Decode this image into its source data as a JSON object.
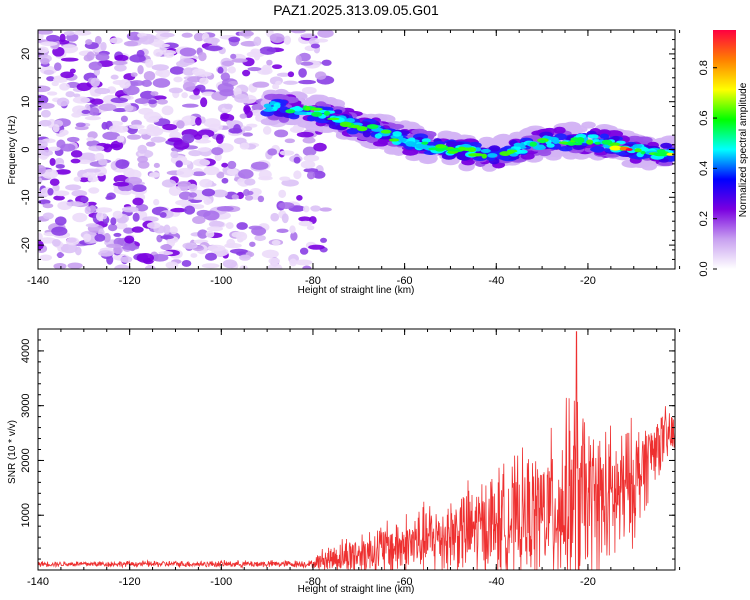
{
  "title": "PAZ1.2025.313.09.05.G01",
  "chart_data": [
    {
      "type": "heatmap",
      "name": "spectrogram",
      "xlabel": "Height of straight line (km)",
      "ylabel": "Frequency (Hz)",
      "xlim": [
        -140,
        -1
      ],
      "ylim": [
        -25,
        25
      ],
      "xticks": [
        "-140",
        "-120",
        "-100",
        "-80",
        "-60",
        "-40",
        "-20"
      ],
      "yticks": [
        "-20",
        "-10",
        "0",
        "10",
        "20"
      ],
      "colorbar": {
        "label": "Normalized spectral amplitude",
        "range": [
          0.0,
          0.95
        ],
        "ticks": [
          "0.0",
          "0.2",
          "0.4",
          "0.6",
          "0.8"
        ],
        "colors": [
          "#ffffff",
          "#c8a0f0",
          "#7a00e0",
          "#0000ff",
          "#00ffff",
          "#00ff00",
          "#ffff00",
          "#ff8000",
          "#ff0040"
        ]
      },
      "signal_track": {
        "description_points_km_hz": [
          [
            -90,
            9
          ],
          [
            -80,
            8
          ],
          [
            -70,
            5
          ],
          [
            -60,
            2
          ],
          [
            -50,
            0
          ],
          [
            -40,
            -1
          ],
          [
            -30,
            1.5
          ],
          [
            -20,
            2
          ],
          [
            -10,
            0
          ],
          [
            -1,
            -1
          ]
        ]
      },
      "noise_region_km": [
        -140,
        -77
      ]
    },
    {
      "type": "line",
      "name": "snr",
      "xlabel": "Height of straight line (km)",
      "ylabel": "SNR (10 * v/v)",
      "xlim": [
        -140,
        -1
      ],
      "ylim": [
        0,
        4400
      ],
      "xticks": [
        "-140",
        "-120",
        "-100",
        "-80",
        "-60",
        "-40",
        "-20"
      ],
      "yticks": [
        "1000",
        "2000",
        "3000",
        "4000"
      ],
      "color": "#ee3030",
      "envelope": {
        "x": [
          -140,
          -80,
          -78,
          -70,
          -60,
          -50,
          -40,
          -30,
          -25,
          -23,
          -20,
          -15,
          -10,
          -5,
          -1
        ],
        "base": [
          110,
          110,
          180,
          300,
          450,
          650,
          850,
          1050,
          1200,
          1400,
          1300,
          1250,
          1600,
          2300,
          2500
        ],
        "amp": [
          60,
          80,
          250,
          500,
          700,
          900,
          1200,
          1400,
          2000,
          2400,
          1700,
          1600,
          1300,
          700,
          600
        ]
      },
      "peak": {
        "x": -22.5,
        "y": 4350
      }
    }
  ]
}
